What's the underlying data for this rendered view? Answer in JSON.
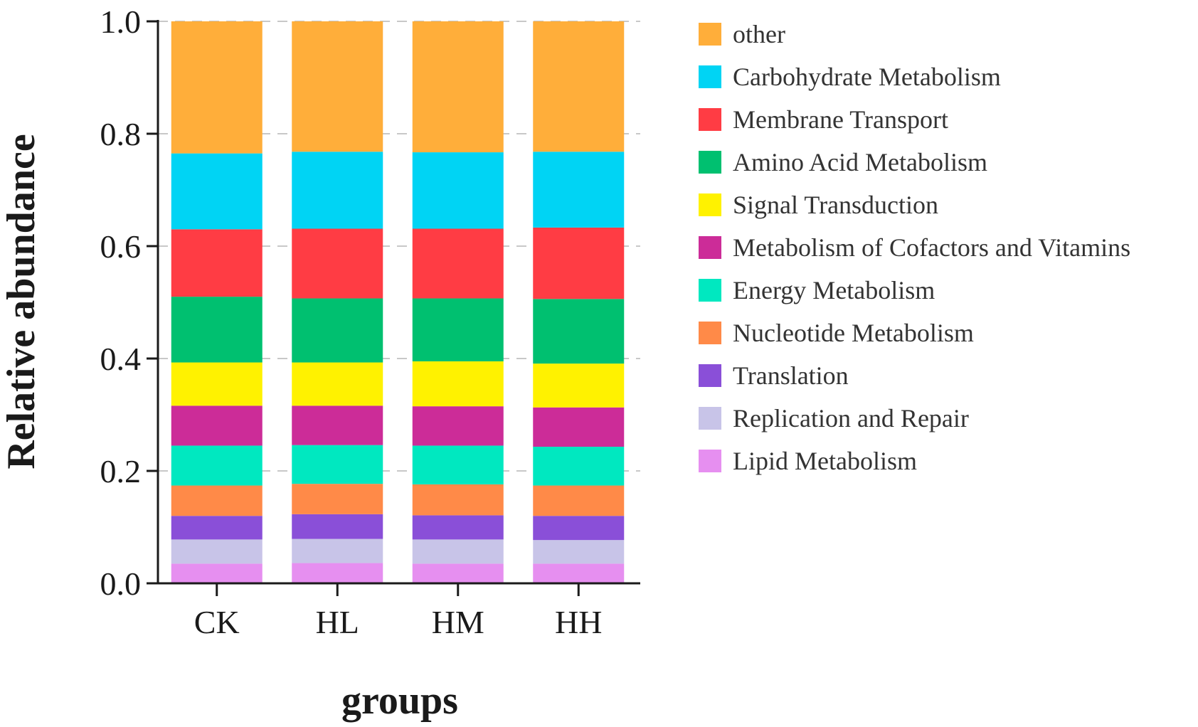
{
  "chart_data": {
    "type": "bar",
    "stacked": true,
    "title": "",
    "xlabel": "groups",
    "ylabel": "Relative abundance",
    "ylim": [
      0,
      1.0
    ],
    "yticks": [
      "0.0",
      "0.2",
      "0.4",
      "0.6",
      "0.8",
      "1.0"
    ],
    "grid": "dashed horizontal at major ticks",
    "legend_position": "right",
    "categories": [
      "CK",
      "HL",
      "HM",
      "HH"
    ],
    "series": [
      {
        "name": "Lipid Metabolism",
        "color": "#E68FF0",
        "values": [
          0.035,
          0.036,
          0.035,
          0.035
        ]
      },
      {
        "name": "Replication and Repair",
        "color": "#C8C4E8",
        "values": [
          0.043,
          0.043,
          0.043,
          0.042
        ]
      },
      {
        "name": "Translation",
        "color": "#8A4FD8",
        "values": [
          0.042,
          0.044,
          0.043,
          0.043
        ]
      },
      {
        "name": "Nucleotide Metabolism",
        "color": "#FF8A48",
        "values": [
          0.054,
          0.054,
          0.055,
          0.054
        ]
      },
      {
        "name": "Energy Metabolism",
        "color": "#00E8C0",
        "values": [
          0.071,
          0.069,
          0.069,
          0.069
        ]
      },
      {
        "name": "Metabolism of Cofactors and Vitamins",
        "color": "#CC2C98",
        "values": [
          0.071,
          0.07,
          0.07,
          0.07
        ]
      },
      {
        "name": "Signal Transduction",
        "color": "#FFF200",
        "values": [
          0.077,
          0.077,
          0.08,
          0.078
        ]
      },
      {
        "name": "Amino Acid Metabolism",
        "color": "#00C070",
        "values": [
          0.117,
          0.114,
          0.112,
          0.115
        ]
      },
      {
        "name": "Membrane Transport",
        "color": "#FF3C44",
        "values": [
          0.12,
          0.124,
          0.124,
          0.127
        ]
      },
      {
        "name": "Carbohydrate Metabolism",
        "color": "#00D4F4",
        "values": [
          0.135,
          0.137,
          0.136,
          0.135
        ]
      },
      {
        "name": "other",
        "color": "#FFAE3A",
        "values": [
          0.235,
          0.232,
          0.233,
          0.232
        ]
      }
    ],
    "legend_order": [
      "other",
      "Carbohydrate Metabolism",
      "Membrane Transport",
      "Amino Acid Metabolism",
      "Signal Transduction",
      "Metabolism of Cofactors and Vitamins",
      "Energy Metabolism",
      "Nucleotide Metabolism",
      "Translation",
      "Replication and Repair",
      "Lipid Metabolism"
    ]
  }
}
